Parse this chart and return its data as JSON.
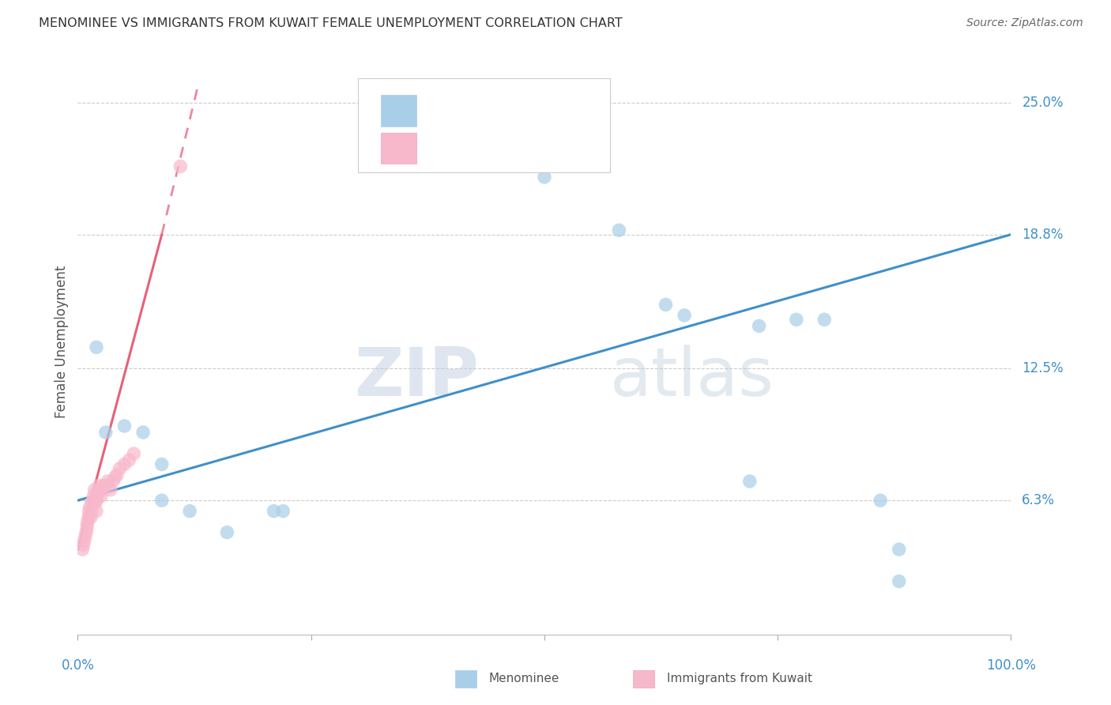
{
  "title": "MENOMINEE VS IMMIGRANTS FROM KUWAIT FEMALE UNEMPLOYMENT CORRELATION CHART",
  "source": "Source: ZipAtlas.com",
  "ylabel": "Female Unemployment",
  "ytick_vals": [
    0.063,
    0.125,
    0.188,
    0.25
  ],
  "ytick_labels": [
    "6.3%",
    "12.5%",
    "18.8%",
    "25.0%"
  ],
  "xlim": [
    0.0,
    1.0
  ],
  "ylim": [
    0.0,
    0.275
  ],
  "watermark_zip": "ZIP",
  "watermark_atlas": "atlas",
  "blue_scatter_color": "#a8cee8",
  "pink_scatter_color": "#f8b8cc",
  "blue_line_color": "#4090c8",
  "pink_line_color": "#e8607a",
  "blue_text_color": "#4090c8",
  "pink_text_color": "#e8607a",
  "background_color": "#ffffff",
  "grid_color": "#cccccc",
  "title_color": "#333333",
  "source_color": "#666666",
  "axis_label_color": "#555555",
  "menominee_x": [
    0.02,
    0.03,
    0.05,
    0.07,
    0.09,
    0.09,
    0.12,
    0.16,
    0.21,
    0.22,
    0.5,
    0.58,
    0.63,
    0.65,
    0.72,
    0.73,
    0.77,
    0.8,
    0.86,
    0.88,
    0.88
  ],
  "menominee_y": [
    0.135,
    0.095,
    0.098,
    0.095,
    0.08,
    0.063,
    0.058,
    0.048,
    0.058,
    0.058,
    0.215,
    0.19,
    0.155,
    0.15,
    0.072,
    0.145,
    0.148,
    0.148,
    0.063,
    0.025,
    0.04
  ],
  "kuwait_x": [
    0.005,
    0.006,
    0.007,
    0.008,
    0.009,
    0.01,
    0.01,
    0.011,
    0.012,
    0.012,
    0.013,
    0.014,
    0.015,
    0.015,
    0.016,
    0.017,
    0.018,
    0.019,
    0.02,
    0.02,
    0.021,
    0.022,
    0.023,
    0.025,
    0.026,
    0.028,
    0.03,
    0.032,
    0.035,
    0.038,
    0.04,
    0.042,
    0.045,
    0.05,
    0.055,
    0.06,
    0.11
  ],
  "kuwait_y": [
    0.04,
    0.042,
    0.044,
    0.046,
    0.048,
    0.05,
    0.052,
    0.054,
    0.056,
    0.058,
    0.06,
    0.055,
    0.058,
    0.062,
    0.063,
    0.065,
    0.068,
    0.062,
    0.058,
    0.063,
    0.065,
    0.068,
    0.07,
    0.065,
    0.068,
    0.07,
    0.07,
    0.072,
    0.068,
    0.072,
    0.074,
    0.075,
    0.078,
    0.08,
    0.082,
    0.085,
    0.22
  ],
  "blue_line_x0": 0.0,
  "blue_line_x1": 1.0,
  "blue_line_y0": 0.063,
  "blue_line_y1": 0.188,
  "pink_line_solid_x0": 0.0,
  "pink_line_solid_x1": 0.09,
  "pink_line_solid_y0": 0.04,
  "pink_line_solid_y1": 0.188,
  "pink_line_dash_x0": 0.09,
  "pink_line_dash_x1": 0.13,
  "pink_line_dash_y0": 0.188,
  "pink_line_dash_y1": 0.26
}
